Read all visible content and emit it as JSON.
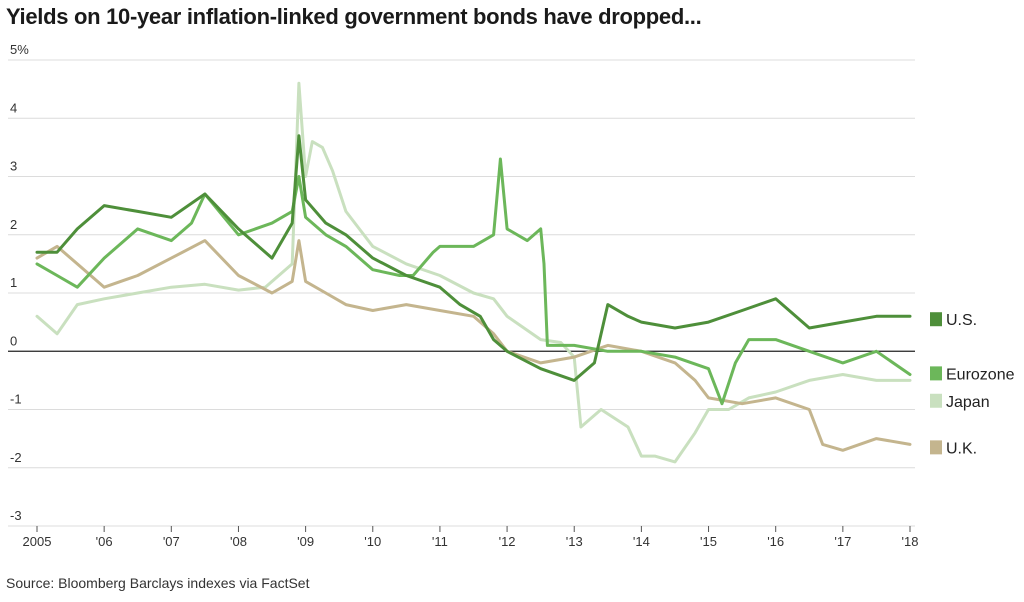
{
  "title": "Yields on 10-year inflation-linked government bonds have dropped...",
  "source": "Source: Bloomberg Barclays indexes via FactSet",
  "chart_data": {
    "type": "line",
    "title": "Yields on 10-year inflation-linked government bonds have dropped...",
    "xlabel": "",
    "ylabel": "",
    "xlim": [
      2005,
      2018
    ],
    "ylim": [
      -3,
      5
    ],
    "grid": true,
    "legend_placement": "right",
    "x_ticks": [
      {
        "value": 2005,
        "label": "2005"
      },
      {
        "value": 2006,
        "label": "'06"
      },
      {
        "value": 2007,
        "label": "'07"
      },
      {
        "value": 2008,
        "label": "'08"
      },
      {
        "value": 2009,
        "label": "'09"
      },
      {
        "value": 2010,
        "label": "'10"
      },
      {
        "value": 2011,
        "label": "'11"
      },
      {
        "value": 2012,
        "label": "'12"
      },
      {
        "value": 2013,
        "label": "'13"
      },
      {
        "value": 2014,
        "label": "'14"
      },
      {
        "value": 2015,
        "label": "'15"
      },
      {
        "value": 2016,
        "label": "'16"
      },
      {
        "value": 2017,
        "label": "'17"
      },
      {
        "value": 2018,
        "label": "'18"
      }
    ],
    "y_ticks": [
      {
        "value": 5,
        "label": "5%"
      },
      {
        "value": 4,
        "label": "4"
      },
      {
        "value": 3,
        "label": "3"
      },
      {
        "value": 2,
        "label": "2"
      },
      {
        "value": 1,
        "label": "1"
      },
      {
        "value": 0,
        "label": "0"
      },
      {
        "value": -1,
        "label": "-1"
      },
      {
        "value": -2,
        "label": "-2"
      },
      {
        "value": -3,
        "label": "-3"
      }
    ],
    "series": [
      {
        "name": "Japan",
        "color": "#c9e0bf",
        "x": [
          2005.0,
          2005.3,
          2005.6,
          2006.0,
          2006.5,
          2007.0,
          2007.5,
          2008.0,
          2008.4,
          2008.8,
          2008.9,
          2009.0,
          2009.1,
          2009.25,
          2009.4,
          2009.6,
          2009.8,
          2010.0,
          2010.5,
          2011.0,
          2011.5,
          2011.8,
          2012.0,
          2012.5,
          2012.8,
          2013.0,
          2013.1,
          2013.4,
          2013.8,
          2014.0,
          2014.2,
          2014.5,
          2014.8,
          2015.0,
          2015.3,
          2015.6,
          2016.0,
          2016.5,
          2017.0,
          2017.5,
          2018.0
        ],
        "values": [
          0.6,
          0.3,
          0.8,
          0.9,
          1.0,
          1.1,
          1.15,
          1.05,
          1.1,
          1.5,
          4.6,
          3.0,
          3.6,
          3.5,
          3.1,
          2.4,
          2.1,
          1.8,
          1.5,
          1.3,
          1.0,
          0.9,
          0.6,
          0.2,
          0.15,
          -0.1,
          -1.3,
          -1.0,
          -1.3,
          -1.8,
          -1.8,
          -1.9,
          -1.4,
          -1.0,
          -1.0,
          -0.8,
          -0.7,
          -0.5,
          -0.4,
          -0.5,
          -0.5
        ]
      },
      {
        "name": "U.K.",
        "color": "#c4b58e",
        "x": [
          2005.0,
          2005.3,
          2005.6,
          2006.0,
          2006.5,
          2007.0,
          2007.5,
          2008.0,
          2008.5,
          2008.8,
          2008.9,
          2009.0,
          2009.3,
          2009.6,
          2010.0,
          2010.5,
          2011.0,
          2011.5,
          2011.8,
          2012.0,
          2012.5,
          2013.0,
          2013.5,
          2014.0,
          2014.5,
          2014.8,
          2015.0,
          2015.5,
          2016.0,
          2016.5,
          2016.7,
          2017.0,
          2017.5,
          2018.0
        ],
        "values": [
          1.6,
          1.8,
          1.5,
          1.1,
          1.3,
          1.6,
          1.9,
          1.3,
          1.0,
          1.2,
          1.9,
          1.2,
          1.0,
          0.8,
          0.7,
          0.8,
          0.7,
          0.6,
          0.3,
          0.0,
          -0.2,
          -0.1,
          0.1,
          0.0,
          -0.2,
          -0.5,
          -0.8,
          -0.9,
          -0.8,
          -1.0,
          -1.6,
          -1.7,
          -1.5,
          -1.6
        ]
      },
      {
        "name": "Eurozone",
        "color": "#6cb75a",
        "x": [
          2005.0,
          2005.3,
          2005.6,
          2006.0,
          2006.5,
          2007.0,
          2007.3,
          2007.5,
          2008.0,
          2008.5,
          2008.8,
          2008.9,
          2009.0,
          2009.3,
          2009.6,
          2010.0,
          2010.4,
          2010.6,
          2010.9,
          2011.0,
          2011.5,
          2011.8,
          2011.9,
          2012.0,
          2012.3,
          2012.5,
          2012.55,
          2012.6,
          2013.0,
          2013.5,
          2014.0,
          2014.5,
          2015.0,
          2015.2,
          2015.4,
          2015.6,
          2016.0,
          2016.5,
          2017.0,
          2017.5,
          2018.0
        ],
        "values": [
          1.5,
          1.3,
          1.1,
          1.6,
          2.1,
          1.9,
          2.2,
          2.7,
          2.0,
          2.2,
          2.4,
          3.0,
          2.3,
          2.0,
          1.8,
          1.4,
          1.3,
          1.3,
          1.7,
          1.8,
          1.8,
          2.0,
          3.3,
          2.1,
          1.9,
          2.1,
          1.5,
          0.1,
          0.1,
          0.0,
          0.0,
          -0.1,
          -0.3,
          -0.9,
          -0.2,
          0.2,
          0.2,
          0.0,
          -0.2,
          0.0,
          -0.4
        ]
      },
      {
        "name": "U.S.",
        "color": "#4e8f3a",
        "x": [
          2005.0,
          2005.3,
          2005.6,
          2006.0,
          2006.5,
          2007.0,
          2007.5,
          2008.0,
          2008.5,
          2008.8,
          2008.9,
          2009.0,
          2009.3,
          2009.6,
          2010.0,
          2010.5,
          2011.0,
          2011.3,
          2011.6,
          2011.8,
          2012.0,
          2012.5,
          2013.0,
          2013.3,
          2013.5,
          2013.8,
          2014.0,
          2014.5,
          2015.0,
          2015.5,
          2016.0,
          2016.5,
          2017.0,
          2017.5,
          2018.0
        ],
        "values": [
          1.7,
          1.7,
          2.1,
          2.5,
          2.4,
          2.3,
          2.7,
          2.1,
          1.6,
          2.2,
          3.7,
          2.6,
          2.2,
          2.0,
          1.6,
          1.3,
          1.1,
          0.8,
          0.6,
          0.2,
          0.0,
          -0.3,
          -0.5,
          -0.2,
          0.8,
          0.6,
          0.5,
          0.4,
          0.5,
          0.7,
          0.9,
          0.4,
          0.5,
          0.6,
          0.6
        ]
      }
    ],
    "legend": [
      {
        "label": "U.S.",
        "value_at": 0.55,
        "color": "#4e8f3a"
      },
      {
        "label": "Eurozone",
        "value_at": -0.38,
        "color": "#6cb75a"
      },
      {
        "label": "Japan",
        "value_at": -0.85,
        "color": "#c9e0bf"
      },
      {
        "label": "U.K.",
        "value_at": -1.65,
        "color": "#c4b58e"
      }
    ]
  }
}
